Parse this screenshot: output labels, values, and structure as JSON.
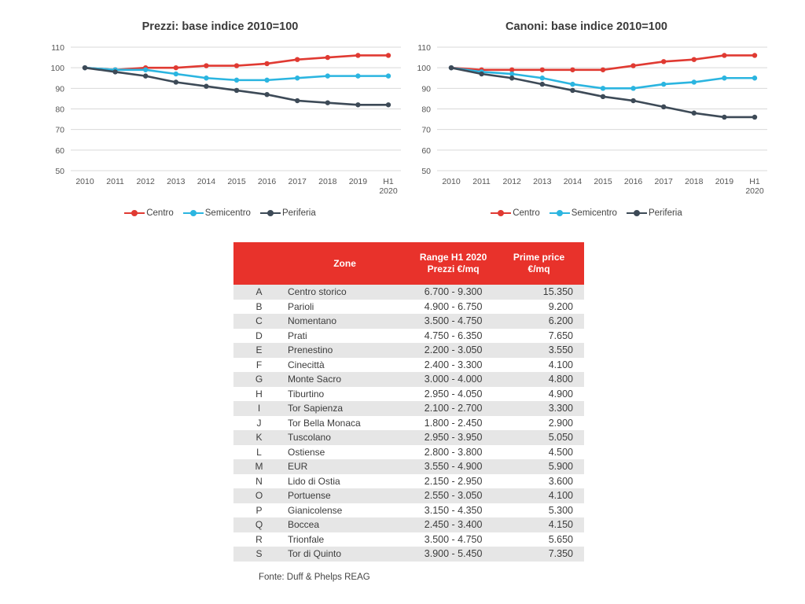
{
  "chart_data": [
    {
      "type": "line",
      "title": "Prezzi: base indice 2010=100",
      "categories": [
        "2010",
        "2011",
        "2012",
        "2013",
        "2014",
        "2015",
        "2016",
        "2017",
        "2018",
        "2019",
        "H1 2020"
      ],
      "ylim": [
        50,
        110
      ],
      "yticks": [
        50,
        60,
        70,
        80,
        90,
        100,
        110
      ],
      "grid": true,
      "legend": "bottom",
      "series": [
        {
          "name": "Centro",
          "color": "#e03a32",
          "values": [
            100,
            99,
            100,
            100,
            101,
            101,
            102,
            104,
            105,
            106,
            106
          ]
        },
        {
          "name": "Semicentro",
          "color": "#2bb5e0",
          "values": [
            100,
            99,
            99,
            97,
            95,
            94,
            94,
            95,
            96,
            96,
            96
          ]
        },
        {
          "name": "Periferia",
          "color": "#3d4a57",
          "values": [
            100,
            98,
            96,
            93,
            91,
            89,
            87,
            84,
            83,
            82,
            82
          ]
        }
      ]
    },
    {
      "type": "line",
      "title": "Canoni: base indice 2010=100",
      "categories": [
        "2010",
        "2011",
        "2012",
        "2013",
        "2014",
        "2015",
        "2016",
        "2017",
        "2018",
        "2019",
        "H1 2020"
      ],
      "ylim": [
        50,
        110
      ],
      "yticks": [
        50,
        60,
        70,
        80,
        90,
        100,
        110
      ],
      "grid": true,
      "legend": "bottom",
      "series": [
        {
          "name": "Centro",
          "color": "#e03a32",
          "values": [
            100,
            99,
            99,
            99,
            99,
            99,
            101,
            103,
            104,
            106,
            106
          ]
        },
        {
          "name": "Semicentro",
          "color": "#2bb5e0",
          "values": [
            100,
            98,
            97,
            95,
            92,
            90,
            90,
            92,
            93,
            95,
            95
          ]
        },
        {
          "name": "Periferia",
          "color": "#3d4a57",
          "values": [
            100,
            97,
            95,
            92,
            89,
            86,
            84,
            81,
            78,
            76,
            76
          ]
        }
      ]
    },
    {
      "type": "table",
      "headers": {
        "code": "",
        "zone": "Zone",
        "range": "Range H1 2020 Prezzi €/mq",
        "prime": "Prime price €/mq"
      },
      "rows": [
        {
          "code": "A",
          "zone": "Centro storico",
          "range": "6.700 - 9.300",
          "prime": "15.350"
        },
        {
          "code": "B",
          "zone": "Parioli",
          "range": "4.900 - 6.750",
          "prime": "9.200"
        },
        {
          "code": "C",
          "zone": "Nomentano",
          "range": "3.500 - 4.750",
          "prime": "6.200"
        },
        {
          "code": "D",
          "zone": "Prati",
          "range": "4.750 - 6.350",
          "prime": "7.650"
        },
        {
          "code": "E",
          "zone": "Prenestino",
          "range": "2.200 - 3.050",
          "prime": "3.550"
        },
        {
          "code": "F",
          "zone": "Cinecittà",
          "range": "2.400 - 3.300",
          "prime": "4.100"
        },
        {
          "code": "G",
          "zone": "Monte Sacro",
          "range": "3.000 - 4.000",
          "prime": "4.800"
        },
        {
          "code": "H",
          "zone": "Tiburtino",
          "range": "2.950 - 4.050",
          "prime": "4.900"
        },
        {
          "code": "I",
          "zone": "Tor Sapienza",
          "range": "2.100 - 2.700",
          "prime": "3.300"
        },
        {
          "code": "J",
          "zone": "Tor Bella Monaca",
          "range": "1.800 - 2.450",
          "prime": "2.900"
        },
        {
          "code": "K",
          "zone": "Tuscolano",
          "range": "2.950 - 3.950",
          "prime": "5.050"
        },
        {
          "code": "L",
          "zone": "Ostiense",
          "range": "2.800 - 3.800",
          "prime": "4.500"
        },
        {
          "code": "M",
          "zone": "EUR",
          "range": "3.550 - 4.900",
          "prime": "5.900"
        },
        {
          "code": "N",
          "zone": "Lido di Ostia",
          "range": "2.150 - 2.950",
          "prime": "3.600"
        },
        {
          "code": "O",
          "zone": "Portuense",
          "range": "2.550 - 3.050",
          "prime": "4.100"
        },
        {
          "code": "P",
          "zone": "Gianicolense",
          "range": "3.150 - 4.350",
          "prime": "5.300"
        },
        {
          "code": "Q",
          "zone": "Boccea",
          "range": "2.450 - 3.400",
          "prime": "4.150"
        },
        {
          "code": "R",
          "zone": "Trionfale",
          "range": "3.500 - 4.750",
          "prime": "5.650"
        },
        {
          "code": "S",
          "zone": "Tor di Quinto",
          "range": "3.900 - 5.450",
          "prime": "7.350"
        }
      ]
    }
  ],
  "source": "Fonte: Duff & Phelps REAG"
}
